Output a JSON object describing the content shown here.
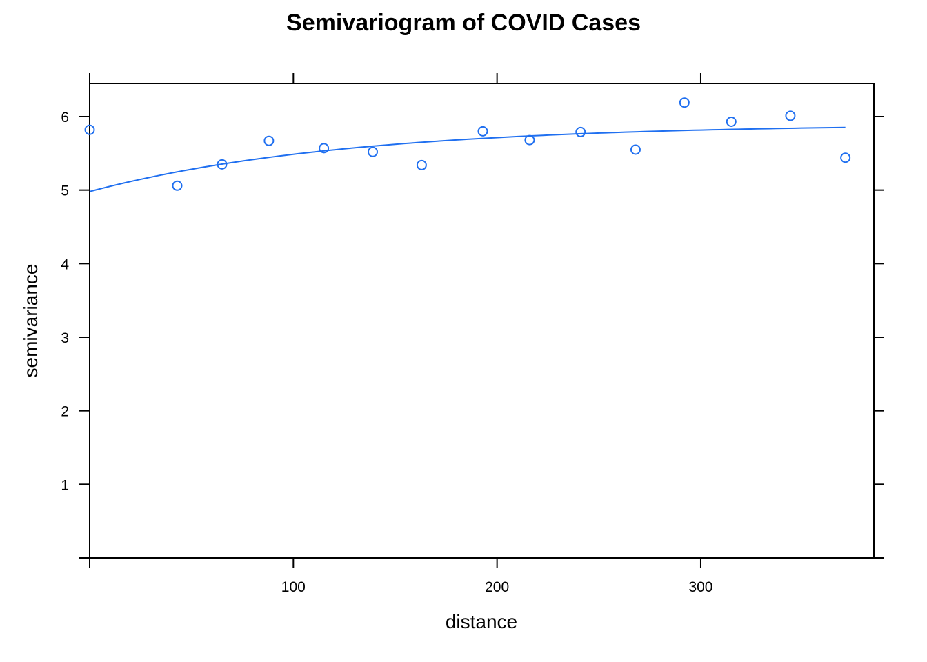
{
  "chart_data": {
    "type": "scatter",
    "title": "Semivariogram of COVID Cases",
    "xlabel": "distance",
    "ylabel": "semivariance",
    "xlim": [
      0,
      385
    ],
    "ylim": [
      0,
      6.45
    ],
    "x_ticks": [
      100,
      200,
      300
    ],
    "y_ticks": [
      1,
      2,
      3,
      4,
      5,
      6
    ],
    "x_tick_labels": [
      "100",
      "200",
      "300"
    ],
    "y_tick_labels": [
      "1",
      "2",
      "3",
      "4",
      "5",
      "6"
    ],
    "grid": false,
    "series": [
      {
        "type": "scatter",
        "marker": "open-circle",
        "color": "#1f6ff0",
        "x": [
          0,
          43,
          65,
          88,
          115,
          139,
          163,
          193,
          216,
          241,
          268,
          292,
          315,
          344,
          371
        ],
        "y": [
          5.82,
          5.06,
          5.35,
          5.67,
          5.57,
          5.52,
          5.34,
          5.8,
          5.68,
          5.79,
          5.55,
          6.19,
          5.93,
          6.01,
          5.44
        ]
      },
      {
        "type": "line",
        "color": "#1f6ff0",
        "model": "exponential",
        "nugget": 4.98,
        "sill": 5.9,
        "range": 125,
        "x_range": [
          0,
          371
        ]
      }
    ]
  }
}
